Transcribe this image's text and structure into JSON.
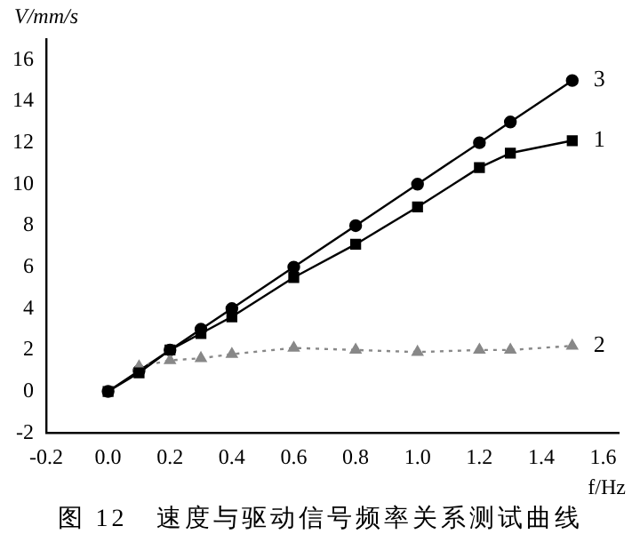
{
  "chart_data": {
    "type": "line",
    "xlabel": "f/Hz",
    "ylabel": "V/mm/s",
    "annotations": [
      "图 12　速度与驱动信号频率关系测试曲线"
    ],
    "x": [
      0,
      0.1,
      0.2,
      0.3,
      0.4,
      0.6,
      0.8,
      1.0,
      1.2,
      1.3,
      1.5
    ],
    "series": [
      {
        "name": "1",
        "color": "#000000",
        "marker": "square",
        "line_style": "solid",
        "values": [
          0,
          0.9,
          2,
          2.8,
          3.6,
          5.5,
          7.1,
          8.9,
          10.8,
          11.5,
          12.1
        ]
      },
      {
        "name": "2",
        "color": "#888888",
        "marker": "triangle",
        "line_style": "dotted",
        "x": [
          0.1,
          0.2,
          0.3,
          0.4,
          0.6,
          0.8,
          1.0,
          1.2,
          1.3,
          1.5
        ],
        "values": [
          1.2,
          1.5,
          1.6,
          1.8,
          2.1,
          2.0,
          1.9,
          2.0,
          2.0,
          2.2
        ]
      },
      {
        "name": "3",
        "color": "#000000",
        "marker": "circle",
        "line_style": "solid",
        "values": [
          0,
          1,
          2,
          3,
          4,
          6,
          8,
          10,
          12,
          13,
          15
        ]
      }
    ],
    "xlim": [
      -0.2,
      1.65
    ],
    "xticks": [
      -0.2,
      {
        "value": 0,
        "label": "0.0"
      },
      0.2,
      0.4,
      0.6,
      0.8,
      {
        "value": 1,
        "label": "1.0"
      },
      1.2,
      1.4,
      1.6
    ],
    "ylim": [
      -2,
      17
    ],
    "yticks": [
      -2,
      0,
      2,
      4,
      6,
      8,
      10,
      12,
      14,
      16
    ],
    "grid": false,
    "legend": false
  }
}
